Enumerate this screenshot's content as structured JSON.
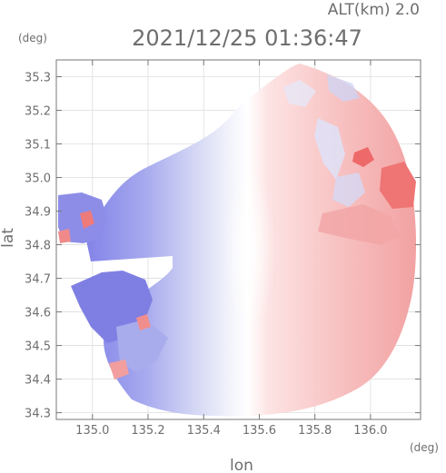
{
  "chart_data": {
    "type": "heatmap",
    "altitude_label": "ALT(km)  2.0",
    "timestamp": "2021/12/25 01:36:47",
    "unit_y": "(deg)",
    "unit_x": "(deg)",
    "ylabel": "lat",
    "xlabel": "lon",
    "xlim": [
      134.87,
      136.18
    ],
    "ylim": [
      34.28,
      35.35
    ],
    "x_ticks": [
      135.0,
      135.2,
      135.4,
      135.6,
      135.8,
      136.0
    ],
    "x_tick_labels": [
      "135.0",
      "135.2",
      "135.4",
      "135.6",
      "135.8",
      "136.0"
    ],
    "y_ticks": [
      35.3,
      35.2,
      35.1,
      35.0,
      34.9,
      34.8,
      34.7,
      34.6,
      34.5,
      34.4,
      34.3
    ],
    "y_tick_labels": [
      "35.3",
      "35.2",
      "35.1",
      "35.0",
      "34.9",
      "34.8",
      "34.7",
      "34.6",
      "34.5",
      "34.4",
      "34.3"
    ],
    "grid": true,
    "legend": "none",
    "radar_center": {
      "lon": 135.52,
      "lat": 34.82
    },
    "radar_range_deg": 0.55,
    "colors": {
      "approaching_strong": "#7a7ae8",
      "approaching_weak": "#c8ccf2",
      "zero": "#ffffff",
      "receding_weak": "#f8c8c8",
      "receding_strong": "#ef6e6e",
      "grid": "#dddddd",
      "frame": "#777777",
      "text": "#6e6e6e"
    }
  }
}
